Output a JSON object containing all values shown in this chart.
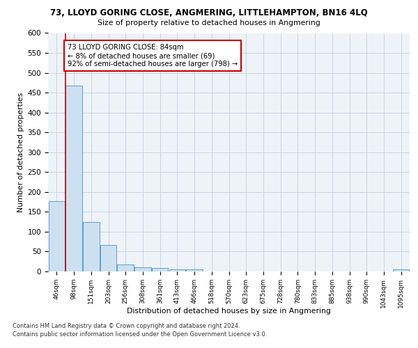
{
  "title": "73, LLOYD GORING CLOSE, ANGMERING, LITTLEHAMPTON, BN16 4LQ",
  "subtitle": "Size of property relative to detached houses in Angmering",
  "xlabel": "Distribution of detached houses by size in Angmering",
  "ylabel": "Number of detached properties",
  "bar_color": "#cce0f0",
  "bar_edge_color": "#5a9fd4",
  "categories": [
    "46sqm",
    "98sqm",
    "151sqm",
    "203sqm",
    "256sqm",
    "308sqm",
    "361sqm",
    "413sqm",
    "466sqm",
    "518sqm",
    "570sqm",
    "623sqm",
    "675sqm",
    "728sqm",
    "780sqm",
    "833sqm",
    "885sqm",
    "938sqm",
    "990sqm",
    "1043sqm",
    "1095sqm"
  ],
  "values": [
    177,
    468,
    125,
    67,
    18,
    10,
    8,
    6,
    5,
    0,
    0,
    0,
    0,
    0,
    0,
    0,
    0,
    0,
    0,
    0,
    6
  ],
  "ylim": [
    0,
    600
  ],
  "yticks": [
    0,
    50,
    100,
    150,
    200,
    250,
    300,
    350,
    400,
    450,
    500,
    550,
    600
  ],
  "annotation_text": "73 LLOYD GORING CLOSE: 84sqm\n← 8% of detached houses are smaller (69)\n92% of semi-detached houses are larger (798) →",
  "vline_color": "#cc0000",
  "annotation_box_color": "#ffffff",
  "annotation_box_edge": "#cc0000",
  "footer_line1": "Contains HM Land Registry data © Crown copyright and database right 2024.",
  "footer_line2": "Contains public sector information licensed under the Open Government Licence v3.0.",
  "grid_color": "#c8d4e0",
  "background_color": "#eef3f8"
}
